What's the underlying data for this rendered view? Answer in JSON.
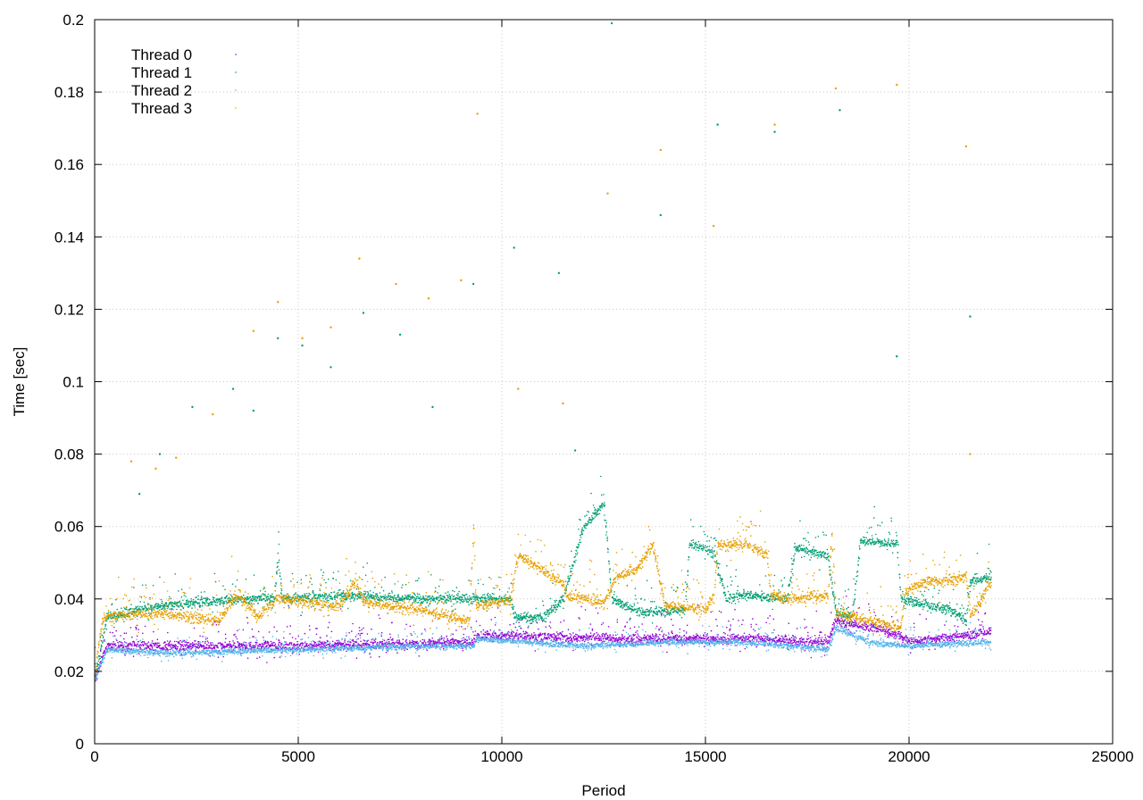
{
  "chart_data": {
    "type": "scatter",
    "title": "",
    "xlabel": "Period",
    "ylabel": "Time [sec]",
    "xlim": [
      0,
      25000
    ],
    "ylim": [
      0,
      0.2
    ],
    "xticks": [
      0,
      5000,
      10000,
      15000,
      20000,
      25000
    ],
    "yticks": [
      0,
      0.02,
      0.04,
      0.06,
      0.08,
      0.1,
      0.12,
      0.14,
      0.16,
      0.18,
      0.2
    ],
    "xtick_labels": [
      "0",
      "5000",
      "10000",
      "15000",
      "20000",
      "25000"
    ],
    "ytick_labels": [
      "0",
      "0.02",
      "0.04",
      "0.06",
      "0.08",
      "0.1",
      "0.12",
      "0.14",
      "0.16",
      "0.18",
      "0.2"
    ],
    "grid": true,
    "legend_position": "top-left",
    "x_max_data": 22000,
    "series": [
      {
        "name": "Thread 0",
        "color": "#9400d3",
        "baseline": [
          [
            0,
            0.018
          ],
          [
            300,
            0.027
          ],
          [
            2000,
            0.027
          ],
          [
            5000,
            0.027
          ],
          [
            9300,
            0.028
          ],
          [
            9400,
            0.03
          ],
          [
            13000,
            0.029
          ],
          [
            16000,
            0.029
          ],
          [
            18000,
            0.028
          ],
          [
            18200,
            0.034
          ],
          [
            19500,
            0.031
          ],
          [
            20000,
            0.028
          ],
          [
            21500,
            0.03
          ],
          [
            22000,
            0.031
          ]
        ],
        "noise": 0.006
      },
      {
        "name": "Thread 1",
        "color": "#009e73",
        "baseline": [
          [
            0,
            0.018
          ],
          [
            300,
            0.035
          ],
          [
            1500,
            0.038
          ],
          [
            3500,
            0.04
          ],
          [
            4400,
            0.04
          ],
          [
            4500,
            0.051
          ],
          [
            4600,
            0.04
          ],
          [
            6000,
            0.041
          ],
          [
            8000,
            0.04
          ],
          [
            9500,
            0.04
          ],
          [
            10200,
            0.04
          ],
          [
            10300,
            0.035
          ],
          [
            11000,
            0.035
          ],
          [
            11500,
            0.04
          ],
          [
            12000,
            0.06
          ],
          [
            12500,
            0.066
          ],
          [
            12700,
            0.04
          ],
          [
            13000,
            0.038
          ],
          [
            13500,
            0.036
          ],
          [
            14500,
            0.037
          ],
          [
            14600,
            0.055
          ],
          [
            15200,
            0.053
          ],
          [
            15500,
            0.04
          ],
          [
            16000,
            0.041
          ],
          [
            17000,
            0.04
          ],
          [
            17200,
            0.054
          ],
          [
            18000,
            0.052
          ],
          [
            18200,
            0.036
          ],
          [
            18600,
            0.035
          ],
          [
            18800,
            0.056
          ],
          [
            19700,
            0.055
          ],
          [
            19800,
            0.04
          ],
          [
            20500,
            0.038
          ],
          [
            21000,
            0.037
          ],
          [
            21400,
            0.034
          ],
          [
            21500,
            0.045
          ],
          [
            22000,
            0.046
          ]
        ],
        "noise": 0.006
      },
      {
        "name": "Thread 2",
        "color": "#56b4e9",
        "baseline": [
          [
            0,
            0.018
          ],
          [
            300,
            0.026
          ],
          [
            2000,
            0.025
          ],
          [
            5000,
            0.026
          ],
          [
            8000,
            0.027
          ],
          [
            9300,
            0.027
          ],
          [
            9400,
            0.029
          ],
          [
            12000,
            0.027
          ],
          [
            14000,
            0.028
          ],
          [
            16000,
            0.028
          ],
          [
            18000,
            0.026
          ],
          [
            18200,
            0.032
          ],
          [
            19000,
            0.028
          ],
          [
            20000,
            0.027
          ],
          [
            22000,
            0.028
          ]
        ],
        "noise": 0.004
      },
      {
        "name": "Thread 3",
        "color": "#e69f00",
        "baseline": [
          [
            0,
            0.02
          ],
          [
            200,
            0.035
          ],
          [
            1500,
            0.036
          ],
          [
            3000,
            0.034
          ],
          [
            3500,
            0.041
          ],
          [
            4000,
            0.035
          ],
          [
            4500,
            0.04
          ],
          [
            6000,
            0.038
          ],
          [
            6400,
            0.045
          ],
          [
            6600,
            0.039
          ],
          [
            8000,
            0.037
          ],
          [
            9200,
            0.034
          ],
          [
            9300,
            0.06
          ],
          [
            9350,
            0.038
          ],
          [
            10000,
            0.039
          ],
          [
            10200,
            0.04
          ],
          [
            10400,
            0.052
          ],
          [
            11000,
            0.048
          ],
          [
            11500,
            0.044
          ],
          [
            11600,
            0.041
          ],
          [
            12500,
            0.039
          ],
          [
            12800,
            0.046
          ],
          [
            13300,
            0.048
          ],
          [
            13700,
            0.055
          ],
          [
            14000,
            0.038
          ],
          [
            15000,
            0.037
          ],
          [
            15200,
            0.041
          ],
          [
            15300,
            0.055
          ],
          [
            16000,
            0.055
          ],
          [
            16500,
            0.052
          ],
          [
            16600,
            0.041
          ],
          [
            17000,
            0.04
          ],
          [
            18000,
            0.041
          ],
          [
            18100,
            0.058
          ],
          [
            18200,
            0.036
          ],
          [
            19000,
            0.034
          ],
          [
            19800,
            0.032
          ],
          [
            19900,
            0.042
          ],
          [
            20500,
            0.045
          ],
          [
            21000,
            0.045
          ],
          [
            21400,
            0.046
          ],
          [
            21500,
            0.035
          ],
          [
            22000,
            0.045
          ]
        ],
        "noise": 0.007
      }
    ],
    "outliers": [
      [
        900,
        0.078
      ],
      [
        1100,
        0.069
      ],
      [
        1500,
        0.076
      ],
      [
        1600,
        0.08
      ],
      [
        2000,
        0.079
      ],
      [
        2400,
        0.093
      ],
      [
        2900,
        0.091
      ],
      [
        3400,
        0.098
      ],
      [
        3900,
        0.114
      ],
      [
        3900,
        0.092
      ],
      [
        4500,
        0.122
      ],
      [
        4500,
        0.112
      ],
      [
        5100,
        0.112
      ],
      [
        5100,
        0.11
      ],
      [
        5800,
        0.115
      ],
      [
        5800,
        0.104
      ],
      [
        6500,
        0.134
      ],
      [
        6600,
        0.119
      ],
      [
        7400,
        0.127
      ],
      [
        7500,
        0.113
      ],
      [
        8200,
        0.123
      ],
      [
        8300,
        0.093
      ],
      [
        9000,
        0.128
      ],
      [
        9300,
        0.127
      ],
      [
        9400,
        0.174
      ],
      [
        10300,
        0.137
      ],
      [
        10400,
        0.098
      ],
      [
        11400,
        0.13
      ],
      [
        11500,
        0.094
      ],
      [
        11800,
        0.081
      ],
      [
        12600,
        0.152
      ],
      [
        12700,
        0.199
      ],
      [
        13900,
        0.164
      ],
      [
        13900,
        0.146
      ],
      [
        15200,
        0.143
      ],
      [
        15300,
        0.171
      ],
      [
        16700,
        0.171
      ],
      [
        16700,
        0.169
      ],
      [
        18200,
        0.181
      ],
      [
        18300,
        0.175
      ],
      [
        19700,
        0.182
      ],
      [
        19700,
        0.107
      ],
      [
        21400,
        0.165
      ],
      [
        21500,
        0.118
      ],
      [
        21500,
        0.08
      ]
    ]
  }
}
